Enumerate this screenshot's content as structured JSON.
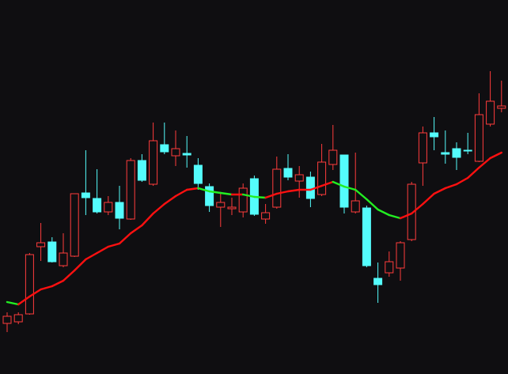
{
  "chart_data": {
    "type": "candlestick",
    "ylim": [
      0,
      473
    ],
    "background": "#0f0e11",
    "up_color": "#ff3c3c",
    "down_color": "#54fcfc",
    "open": [
      64,
      66,
      76,
      161,
      167,
      137,
      149,
      229,
      222,
      205,
      217,
      196,
      270,
      240,
      290,
      276,
      279,
      264,
      237,
      211,
      209,
      205,
      247,
      196,
      211,
      260,
      244,
      249,
      227,
      265,
      277,
      205,
      210,
      121,
      128,
      134,
      170,
      267,
      305,
      280,
      285,
      283,
      269,
      316,
      336
    ],
    "high": [
      78,
      78,
      153,
      191,
      173,
      178,
      228,
      283,
      259,
      225,
      238,
      273,
      278,
      318,
      318,
      308,
      301,
      273,
      241,
      229,
      223,
      241,
      251,
      215,
      275,
      278,
      263,
      256,
      291,
      315,
      277,
      280,
      213,
      141,
      155,
      168,
      243,
      313,
      325,
      308,
      293,
      305,
      355,
      383,
      371
    ],
    "low": [
      53,
      63,
      75,
      143,
      141,
      135,
      148,
      201,
      203,
      201,
      183,
      195,
      243,
      238,
      278,
      263,
      261,
      233,
      205,
      186,
      201,
      198,
      200,
      190,
      209,
      245,
      223,
      211,
      225,
      258,
      203,
      203,
      135,
      90,
      123,
      118,
      168,
      238,
      283,
      266,
      258,
      278,
      268,
      313,
      331
    ],
    "close": [
      73,
      75,
      151,
      166,
      142,
      153,
      228,
      223,
      205,
      217,
      197,
      270,
      245,
      295,
      281,
      285,
      277,
      241,
      213,
      217,
      211,
      235,
      202,
      204,
      259,
      249,
      252,
      222,
      268,
      283,
      211,
      219,
      137,
      113,
      142,
      166,
      240,
      305,
      300,
      278,
      274,
      282,
      328,
      345,
      339
    ],
    "ma": {
      "values": [
        91,
        88,
        98,
        107,
        111,
        118,
        131,
        145,
        153,
        161,
        165,
        178,
        188,
        203,
        215,
        225,
        233,
        235,
        231,
        229,
        227,
        227,
        224,
        223,
        228,
        231,
        233,
        233,
        238,
        243,
        237,
        233,
        221,
        208,
        201,
        197,
        203,
        215,
        228,
        235,
        240,
        248,
        261,
        273,
        280
      ],
      "rise_color": "#ff1010",
      "fall_color": "#22ee22"
    }
  }
}
